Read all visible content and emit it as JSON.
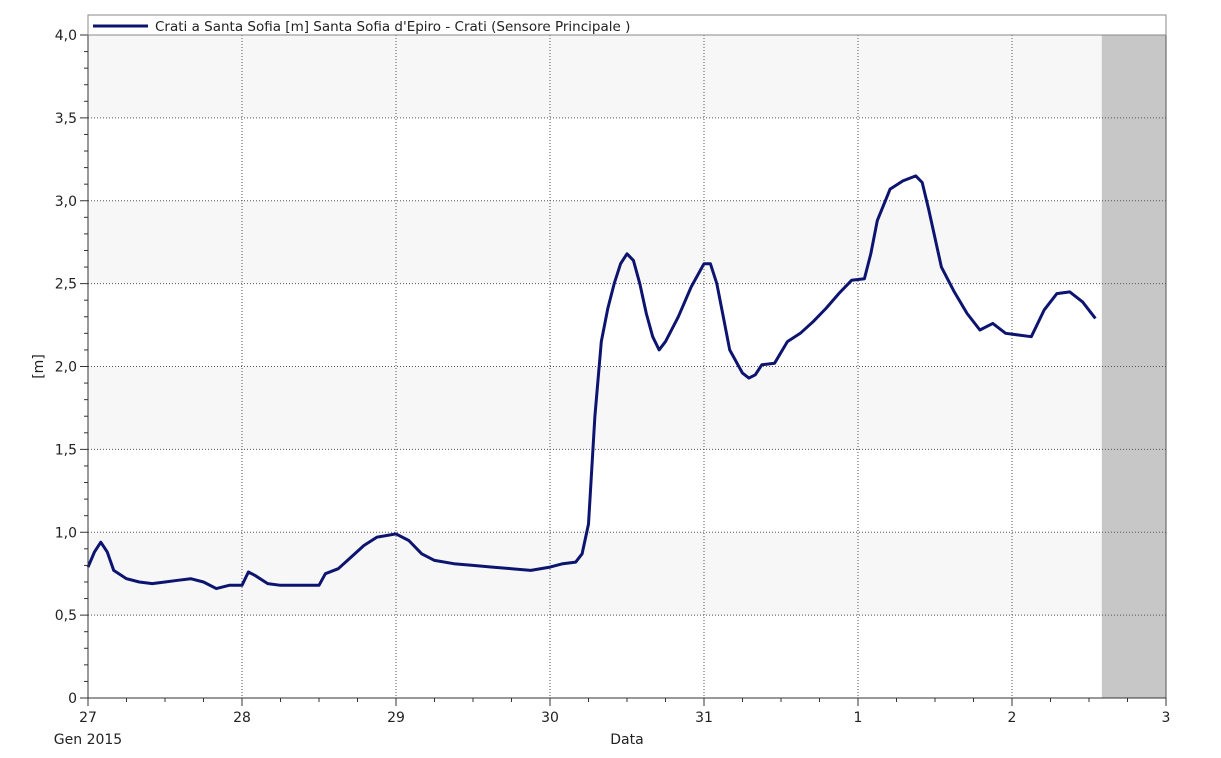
{
  "chart_data": {
    "type": "line",
    "xlabel": "Data",
    "ylabel": "[m]",
    "x_start_label": "Gen 2015",
    "x_range": [
      "2015-01-27",
      "2015-02-03"
    ],
    "ylim": [
      0,
      4.0
    ],
    "grid": true,
    "legend_position": "top-left",
    "x_ticks": [
      {
        "date": "2015-01-27",
        "label": "27"
      },
      {
        "date": "2015-01-28",
        "label": "28"
      },
      {
        "date": "2015-01-29",
        "label": "29"
      },
      {
        "date": "2015-01-30",
        "label": "30"
      },
      {
        "date": "2015-01-31",
        "label": "31"
      },
      {
        "date": "2015-02-01",
        "label": "1"
      },
      {
        "date": "2015-02-02",
        "label": "2"
      },
      {
        "date": "2015-02-03",
        "label": "3"
      }
    ],
    "y_ticks": [
      {
        "value": 0,
        "label": "0"
      },
      {
        "value": 0.5,
        "label": "0,5"
      },
      {
        "value": 1.0,
        "label": "1,0"
      },
      {
        "value": 1.5,
        "label": "1,5"
      },
      {
        "value": 2.0,
        "label": "2,0"
      },
      {
        "value": 2.5,
        "label": "2,5"
      },
      {
        "value": 3.0,
        "label": "3,0"
      },
      {
        "value": 3.5,
        "label": "3,5"
      },
      {
        "value": 4.0,
        "label": "4,0"
      }
    ],
    "no_data_from": "2015-02-02 14:00",
    "series": [
      {
        "name": "Crati a Santa Sofia [m] Santa Sofia d'Epiro - Crati  (Sensore Principale )",
        "color": "#0d1470",
        "points": [
          [
            "2015-01-27 00:00",
            0.79
          ],
          [
            "2015-01-27 01:00",
            0.88
          ],
          [
            "2015-01-27 02:00",
            0.94
          ],
          [
            "2015-01-27 03:00",
            0.88
          ],
          [
            "2015-01-27 04:00",
            0.77
          ],
          [
            "2015-01-27 06:00",
            0.72
          ],
          [
            "2015-01-27 08:00",
            0.7
          ],
          [
            "2015-01-27 10:00",
            0.69
          ],
          [
            "2015-01-27 12:00",
            0.7
          ],
          [
            "2015-01-27 14:00",
            0.71
          ],
          [
            "2015-01-27 16:00",
            0.72
          ],
          [
            "2015-01-27 18:00",
            0.7
          ],
          [
            "2015-01-27 20:00",
            0.66
          ],
          [
            "2015-01-27 22:00",
            0.68
          ],
          [
            "2015-01-28 00:00",
            0.68
          ],
          [
            "2015-01-28 01:00",
            0.76
          ],
          [
            "2015-01-28 02:00",
            0.74
          ],
          [
            "2015-01-28 04:00",
            0.69
          ],
          [
            "2015-01-28 06:00",
            0.68
          ],
          [
            "2015-01-28 09:00",
            0.68
          ],
          [
            "2015-01-28 12:00",
            0.68
          ],
          [
            "2015-01-28 13:00",
            0.75
          ],
          [
            "2015-01-28 15:00",
            0.78
          ],
          [
            "2015-01-28 17:00",
            0.85
          ],
          [
            "2015-01-28 19:00",
            0.92
          ],
          [
            "2015-01-28 21:00",
            0.97
          ],
          [
            "2015-01-29 00:00",
            0.99
          ],
          [
            "2015-01-29 02:00",
            0.95
          ],
          [
            "2015-01-29 04:00",
            0.87
          ],
          [
            "2015-01-29 06:00",
            0.83
          ],
          [
            "2015-01-29 09:00",
            0.81
          ],
          [
            "2015-01-29 12:00",
            0.8
          ],
          [
            "2015-01-29 15:00",
            0.79
          ],
          [
            "2015-01-29 18:00",
            0.78
          ],
          [
            "2015-01-29 21:00",
            0.77
          ],
          [
            "2015-01-30 00:00",
            0.79
          ],
          [
            "2015-01-30 02:00",
            0.81
          ],
          [
            "2015-01-30 04:00",
            0.82
          ],
          [
            "2015-01-30 05:00",
            0.87
          ],
          [
            "2015-01-30 06:00",
            1.05
          ],
          [
            "2015-01-30 07:00",
            1.7
          ],
          [
            "2015-01-30 08:00",
            2.15
          ],
          [
            "2015-01-30 09:00",
            2.35
          ],
          [
            "2015-01-30 10:00",
            2.5
          ],
          [
            "2015-01-30 11:00",
            2.62
          ],
          [
            "2015-01-30 12:00",
            2.68
          ],
          [
            "2015-01-30 13:00",
            2.64
          ],
          [
            "2015-01-30 14:00",
            2.5
          ],
          [
            "2015-01-30 15:00",
            2.32
          ],
          [
            "2015-01-30 16:00",
            2.18
          ],
          [
            "2015-01-30 17:00",
            2.1
          ],
          [
            "2015-01-30 18:00",
            2.15
          ],
          [
            "2015-01-30 20:00",
            2.3
          ],
          [
            "2015-01-30 22:00",
            2.48
          ],
          [
            "2015-01-31 00:00",
            2.62
          ],
          [
            "2015-01-31 01:00",
            2.62
          ],
          [
            "2015-01-31 02:00",
            2.5
          ],
          [
            "2015-01-31 03:00",
            2.3
          ],
          [
            "2015-01-31 04:00",
            2.1
          ],
          [
            "2015-01-31 06:00",
            1.96
          ],
          [
            "2015-01-31 07:00",
            1.93
          ],
          [
            "2015-01-31 08:00",
            1.95
          ],
          [
            "2015-01-31 09:00",
            2.01
          ],
          [
            "2015-01-31 11:00",
            2.02
          ],
          [
            "2015-01-31 13:00",
            2.15
          ],
          [
            "2015-01-31 15:00",
            2.2
          ],
          [
            "2015-01-31 17:00",
            2.27
          ],
          [
            "2015-01-31 19:00",
            2.35
          ],
          [
            "2015-01-31 21:00",
            2.44
          ],
          [
            "2015-01-31 23:00",
            2.52
          ],
          [
            "2015-02-01 01:00",
            2.53
          ],
          [
            "2015-02-01 02:00",
            2.68
          ],
          [
            "2015-02-01 03:00",
            2.88
          ],
          [
            "2015-02-01 05:00",
            3.07
          ],
          [
            "2015-02-01 07:00",
            3.12
          ],
          [
            "2015-02-01 09:00",
            3.15
          ],
          [
            "2015-02-01 10:00",
            3.11
          ],
          [
            "2015-02-01 11:00",
            2.95
          ],
          [
            "2015-02-01 13:00",
            2.6
          ],
          [
            "2015-02-01 15:00",
            2.45
          ],
          [
            "2015-02-01 17:00",
            2.32
          ],
          [
            "2015-02-01 19:00",
            2.22
          ],
          [
            "2015-02-01 21:00",
            2.26
          ],
          [
            "2015-02-01 23:00",
            2.2
          ],
          [
            "2015-02-02 01:00",
            2.19
          ],
          [
            "2015-02-02 03:00",
            2.18
          ],
          [
            "2015-02-02 05:00",
            2.34
          ],
          [
            "2015-02-02 07:00",
            2.44
          ],
          [
            "2015-02-02 09:00",
            2.45
          ],
          [
            "2015-02-02 11:00",
            2.39
          ],
          [
            "2015-02-02 13:00",
            2.29
          ]
        ]
      }
    ]
  }
}
